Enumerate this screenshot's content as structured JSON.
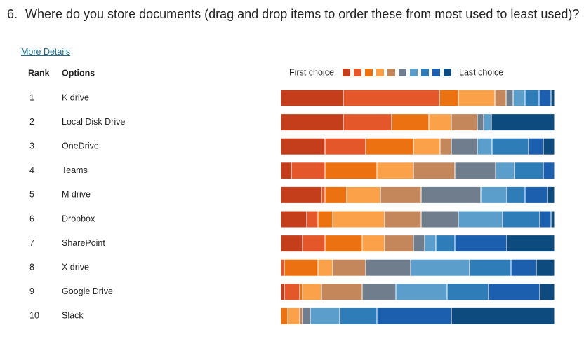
{
  "question": {
    "number": "6.",
    "text": "Where do you store documents (drag and drop items to order these from most used to least used)?"
  },
  "link": "More Details",
  "chart_data": {
    "type": "stacked-bar",
    "headers": [
      "Rank",
      "Options"
    ],
    "ranks": [
      1,
      2,
      3,
      4,
      5,
      6,
      7,
      8,
      9,
      10
    ],
    "categories": [
      "K drive",
      "Local Disk Drive",
      "OneDrive",
      "Teams",
      "M drive",
      "Dropbox",
      "SharePoint",
      "X drive",
      "Google Drive",
      "Slack"
    ],
    "legend_first": "First choice",
    "legend_last": "Last choice",
    "series": [
      {
        "color": "#c43e1c",
        "values": [
          89,
          89,
          63,
          15,
          58,
          37,
          31,
          0,
          5,
          0
        ]
      },
      {
        "color": "#e4572a",
        "values": [
          137,
          69,
          58,
          48,
          5,
          16,
          32,
          5,
          22,
          0
        ]
      },
      {
        "color": "#ec7211",
        "values": [
          27,
          53,
          68,
          74,
          31,
          21,
          53,
          48,
          4,
          10
        ]
      },
      {
        "color": "#fba14a",
        "values": [
          52,
          32,
          38,
          52,
          48,
          74,
          32,
          21,
          27,
          17
        ]
      },
      {
        "color": "#c4875c",
        "values": [
          16,
          37,
          16,
          59,
          58,
          52,
          41,
          47,
          58,
          4
        ]
      },
      {
        "color": "#707d8c",
        "values": [
          10,
          9,
          37,
          58,
          85,
          53,
          16,
          64,
          48,
          11
        ]
      },
      {
        "color": "#5c9ecb",
        "values": [
          17,
          11,
          21,
          27,
          37,
          63,
          16,
          84,
          73,
          42
        ]
      },
      {
        "color": "#2e7cb8",
        "values": [
          20,
          0,
          52,
          41,
          26,
          53,
          27,
          59,
          59,
          53
        ]
      },
      {
        "color": "#1c5fae",
        "values": [
          17,
          0,
          21,
          16,
          32,
          16,
          74,
          36,
          73,
          106
        ]
      },
      {
        "color": "#0d4a7e",
        "values": [
          5,
          90,
          16,
          0,
          10,
          5,
          68,
          26,
          21,
          147
        ]
      }
    ]
  }
}
